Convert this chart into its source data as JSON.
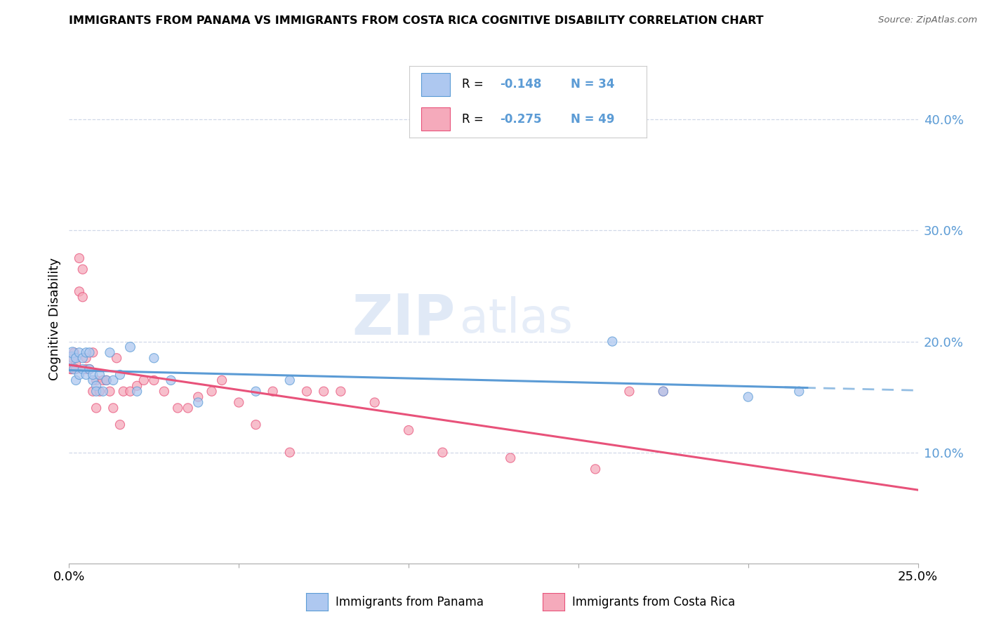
{
  "title": "IMMIGRANTS FROM PANAMA VS IMMIGRANTS FROM COSTA RICA COGNITIVE DISABILITY CORRELATION CHART",
  "source": "Source: ZipAtlas.com",
  "ylabel": "Cognitive Disability",
  "right_yticks": [
    "40.0%",
    "30.0%",
    "20.0%",
    "10.0%"
  ],
  "right_ytick_vals": [
    0.4,
    0.3,
    0.2,
    0.1
  ],
  "xlim": [
    0.0,
    0.25
  ],
  "ylim": [
    0.0,
    0.44
  ],
  "legend_R1": "R = ",
  "legend_V1": "-0.148",
  "legend_N1": "N = 34",
  "legend_R2": "R = ",
  "legend_V2": "-0.275",
  "legend_N2": "N = 49",
  "color_panama": "#aec8f0",
  "color_costarica": "#f5aabb",
  "color_line_panama": "#5b9bd5",
  "color_line_costarica": "#e8527a",
  "color_axis_right": "#5b9bd5",
  "watermark_zip": "ZIP",
  "watermark_atlas": "atlas",
  "grid_color": "#d0d8e8",
  "bg_color": "#ffffff",
  "panama_x": [
    0.0008,
    0.001,
    0.0015,
    0.002,
    0.002,
    0.003,
    0.003,
    0.004,
    0.004,
    0.005,
    0.005,
    0.006,
    0.006,
    0.007,
    0.007,
    0.008,
    0.008,
    0.009,
    0.01,
    0.011,
    0.012,
    0.013,
    0.015,
    0.018,
    0.02,
    0.025,
    0.03,
    0.038,
    0.055,
    0.065,
    0.16,
    0.175,
    0.2,
    0.215
  ],
  "panama_y": [
    0.185,
    0.19,
    0.175,
    0.165,
    0.185,
    0.19,
    0.17,
    0.175,
    0.185,
    0.19,
    0.17,
    0.175,
    0.19,
    0.165,
    0.17,
    0.16,
    0.155,
    0.17,
    0.155,
    0.165,
    0.19,
    0.165,
    0.17,
    0.195,
    0.155,
    0.185,
    0.165,
    0.145,
    0.155,
    0.165,
    0.2,
    0.155,
    0.15,
    0.155
  ],
  "panama_sizes": [
    160,
    120,
    100,
    90,
    90,
    90,
    90,
    90,
    90,
    90,
    90,
    90,
    90,
    90,
    90,
    90,
    90,
    90,
    90,
    90,
    90,
    90,
    90,
    100,
    90,
    90,
    90,
    90,
    90,
    90,
    90,
    90,
    90,
    90
  ],
  "costarica_x": [
    0.0005,
    0.0008,
    0.001,
    0.0015,
    0.002,
    0.002,
    0.003,
    0.003,
    0.004,
    0.004,
    0.005,
    0.005,
    0.006,
    0.007,
    0.007,
    0.008,
    0.008,
    0.009,
    0.01,
    0.011,
    0.012,
    0.013,
    0.014,
    0.015,
    0.016,
    0.018,
    0.02,
    0.022,
    0.025,
    0.028,
    0.032,
    0.035,
    0.038,
    0.042,
    0.045,
    0.05,
    0.055,
    0.06,
    0.065,
    0.07,
    0.075,
    0.08,
    0.09,
    0.1,
    0.11,
    0.13,
    0.155,
    0.165,
    0.175
  ],
  "costarica_y": [
    0.175,
    0.175,
    0.185,
    0.19,
    0.18,
    0.175,
    0.275,
    0.245,
    0.265,
    0.24,
    0.185,
    0.175,
    0.175,
    0.155,
    0.19,
    0.165,
    0.14,
    0.155,
    0.165,
    0.165,
    0.155,
    0.14,
    0.185,
    0.125,
    0.155,
    0.155,
    0.16,
    0.165,
    0.165,
    0.155,
    0.14,
    0.14,
    0.15,
    0.155,
    0.165,
    0.145,
    0.125,
    0.155,
    0.1,
    0.155,
    0.155,
    0.155,
    0.145,
    0.12,
    0.1,
    0.095,
    0.085,
    0.155,
    0.155
  ],
  "costarica_sizes": [
    90,
    90,
    90,
    90,
    90,
    90,
    90,
    90,
    90,
    90,
    90,
    90,
    90,
    90,
    90,
    90,
    90,
    90,
    90,
    90,
    90,
    90,
    90,
    90,
    90,
    90,
    90,
    90,
    90,
    90,
    90,
    90,
    90,
    90,
    90,
    90,
    90,
    90,
    90,
    90,
    90,
    90,
    90,
    90,
    90,
    90,
    90,
    90,
    90
  ]
}
